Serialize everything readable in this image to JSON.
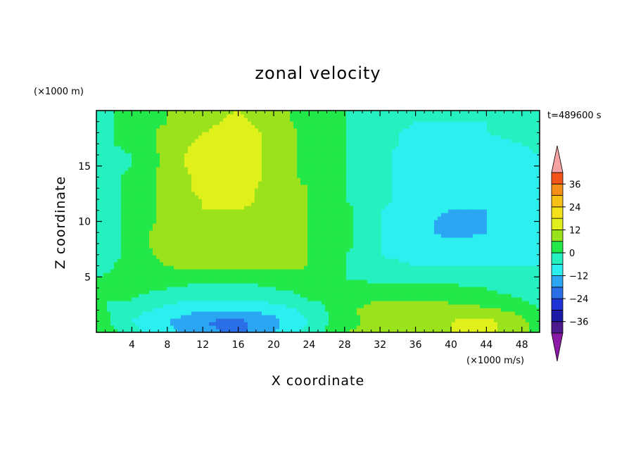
{
  "chart_data": {
    "type": "heatmap",
    "title": "zonal velocity",
    "xlabel": "X coordinate",
    "ylabel": "Z coordinate",
    "x_unit": "(×1000 m/s)",
    "y_unit": "(×1000 m)",
    "time_label": "t=489600 s",
    "xlim": [
      0,
      50
    ],
    "ylim": [
      0,
      20
    ],
    "x_ticks": [
      4,
      8,
      12,
      16,
      20,
      24,
      28,
      32,
      36,
      40,
      44,
      48
    ],
    "x_tick_labels": [
      "4",
      "8",
      "12",
      "16",
      "20",
      "24",
      "28",
      "32",
      "36",
      "40",
      "44",
      "48"
    ],
    "y_ticks": [
      5,
      10,
      15
    ],
    "y_tick_labels": [
      "5",
      "10",
      "15"
    ],
    "colorbar": {
      "levels": [
        -42,
        -36,
        -30,
        -24,
        -18,
        -12,
        -6,
        0,
        6,
        12,
        18,
        24,
        30,
        36,
        42
      ],
      "colors": [
        "#4b1a8c",
        "#1b1ba8",
        "#1f33d6",
        "#2b6fe8",
        "#2aa6f2",
        "#2cf0f0",
        "#25f0c0",
        "#22e84a",
        "#9ae31c",
        "#e0f01a",
        "#f3e21c",
        "#f7c017",
        "#f58e17",
        "#f25418",
        "#e01b1b"
      ],
      "under_color": "#8a1aa6",
      "over_color": "#f5a3a3",
      "tick_values": [
        36,
        24,
        12,
        0,
        -12,
        -24,
        -36
      ],
      "tick_labels": [
        "36",
        "24",
        "12",
        "0",
        "−12",
        "−24",
        "−36"
      ]
    },
    "grid": false,
    "field": {
      "x": [
        0,
        4,
        8,
        12,
        16,
        20,
        24,
        28,
        32,
        36,
        40,
        44,
        48,
        50
      ],
      "z": [
        0,
        1,
        2,
        3,
        4,
        5,
        6,
        7,
        8,
        9,
        10,
        11,
        12,
        13,
        14,
        15,
        16,
        17,
        18,
        19,
        20
      ],
      "values": [
        [
          6,
          -4,
          -10,
          -16,
          -20,
          -12,
          -4,
          6,
          8,
          10,
          12,
          14,
          8,
          2
        ],
        [
          4,
          -6,
          -12,
          -18,
          -20,
          -14,
          -6,
          4,
          8,
          10,
          12,
          14,
          8,
          2
        ],
        [
          2,
          -4,
          -8,
          -12,
          -12,
          -10,
          -4,
          4,
          10,
          12,
          10,
          8,
          4,
          0
        ],
        [
          0,
          0,
          -4,
          -6,
          -6,
          -4,
          0,
          2,
          6,
          6,
          4,
          2,
          0,
          -2
        ],
        [
          0,
          2,
          0,
          -2,
          -2,
          0,
          2,
          2,
          2,
          2,
          2,
          0,
          -2,
          -4
        ],
        [
          0,
          2,
          4,
          2,
          2,
          2,
          4,
          0,
          -2,
          -4,
          -4,
          -4,
          -4,
          -4
        ],
        [
          -2,
          2,
          6,
          8,
          8,
          8,
          6,
          0,
          -4,
          -6,
          -6,
          -6,
          -6,
          -6
        ],
        [
          -4,
          2,
          8,
          10,
          8,
          8,
          6,
          0,
          -6,
          -8,
          -10,
          -8,
          -8,
          -6
        ],
        [
          -4,
          2,
          10,
          10,
          8,
          8,
          6,
          2,
          -6,
          -10,
          -10,
          -10,
          -8,
          -6
        ],
        [
          -4,
          2,
          10,
          10,
          8,
          8,
          6,
          2,
          -6,
          -10,
          -14,
          -12,
          -10,
          -6
        ],
        [
          -4,
          2,
          8,
          10,
          10,
          8,
          6,
          2,
          -6,
          -10,
          -14,
          -12,
          -10,
          -6
        ],
        [
          -4,
          2,
          8,
          12,
          12,
          10,
          6,
          2,
          -6,
          -10,
          -12,
          -12,
          -10,
          -6
        ],
        [
          -4,
          2,
          8,
          12,
          14,
          10,
          6,
          0,
          -4,
          -10,
          -10,
          -10,
          -8,
          -6
        ],
        [
          -4,
          2,
          8,
          14,
          14,
          10,
          6,
          0,
          -4,
          -10,
          -10,
          -10,
          -8,
          -6
        ],
        [
          -4,
          2,
          8,
          14,
          16,
          10,
          4,
          0,
          -4,
          -10,
          -10,
          -10,
          -8,
          -6
        ],
        [
          -4,
          0,
          8,
          16,
          16,
          10,
          4,
          0,
          -4,
          -10,
          -10,
          -10,
          -8,
          -6
        ],
        [
          -4,
          0,
          8,
          16,
          16,
          10,
          4,
          0,
          -4,
          -10,
          -10,
          -10,
          -8,
          -6
        ],
        [
          -2,
          2,
          8,
          14,
          16,
          10,
          4,
          0,
          -4,
          -8,
          -10,
          -8,
          -6,
          -4
        ],
        [
          -2,
          2,
          8,
          12,
          16,
          10,
          4,
          0,
          -4,
          -8,
          -8,
          -6,
          -4,
          -4
        ],
        [
          -2,
          2,
          6,
          10,
          14,
          8,
          4,
          0,
          -2,
          -6,
          -6,
          -6,
          -4,
          -4
        ],
        [
          -2,
          2,
          6,
          10,
          12,
          8,
          4,
          0,
          -2,
          -4,
          -4,
          -4,
          -4,
          -4
        ]
      ]
    }
  }
}
